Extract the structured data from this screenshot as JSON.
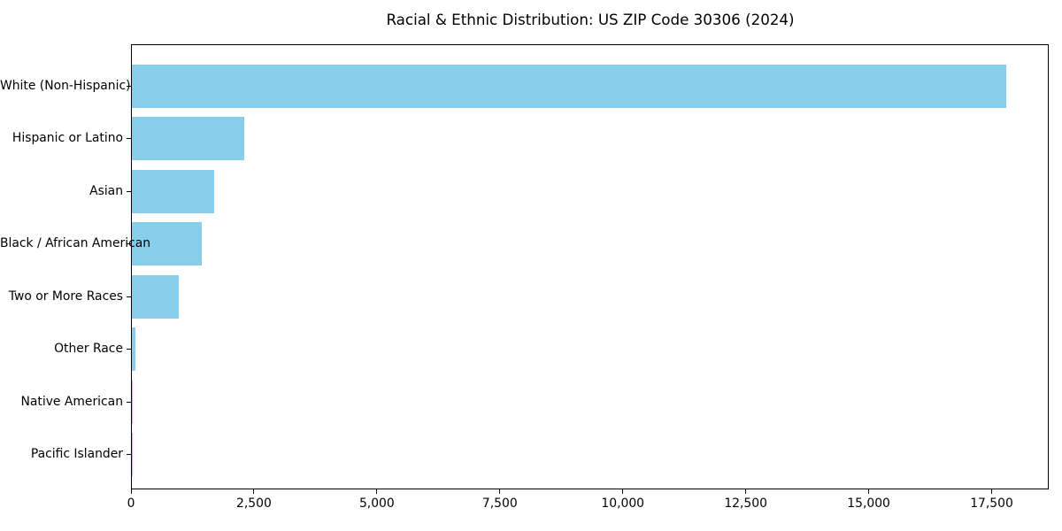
{
  "chart_data": {
    "type": "bar",
    "orientation": "horizontal",
    "title": "Racial & Ethnic Distribution: US ZIP Code 30306 (2024)",
    "categories": [
      "White (Non-Hispanic)",
      "Hispanic or Latino",
      "Asian",
      "Black / African American",
      "Two or More Races",
      "Other Race",
      "Native American",
      "Pacific Islander"
    ],
    "values": [
      17770,
      2290,
      1670,
      1420,
      950,
      70,
      12,
      5
    ],
    "xlabel": "",
    "ylabel": "",
    "xlim": [
      0,
      18660
    ],
    "x_ticks": [
      0,
      2500,
      5000,
      7500,
      10000,
      12500,
      15000,
      17500
    ],
    "x_tick_labels": [
      "0",
      "2,500",
      "5,000",
      "7,500",
      "10,000",
      "12,500",
      "15,000",
      "17,500"
    ],
    "bar_color": "#87CEEB",
    "axis_color": "#000000",
    "text_color": "#000000",
    "background_color": "#ffffff",
    "grid": false,
    "legend": null
  }
}
